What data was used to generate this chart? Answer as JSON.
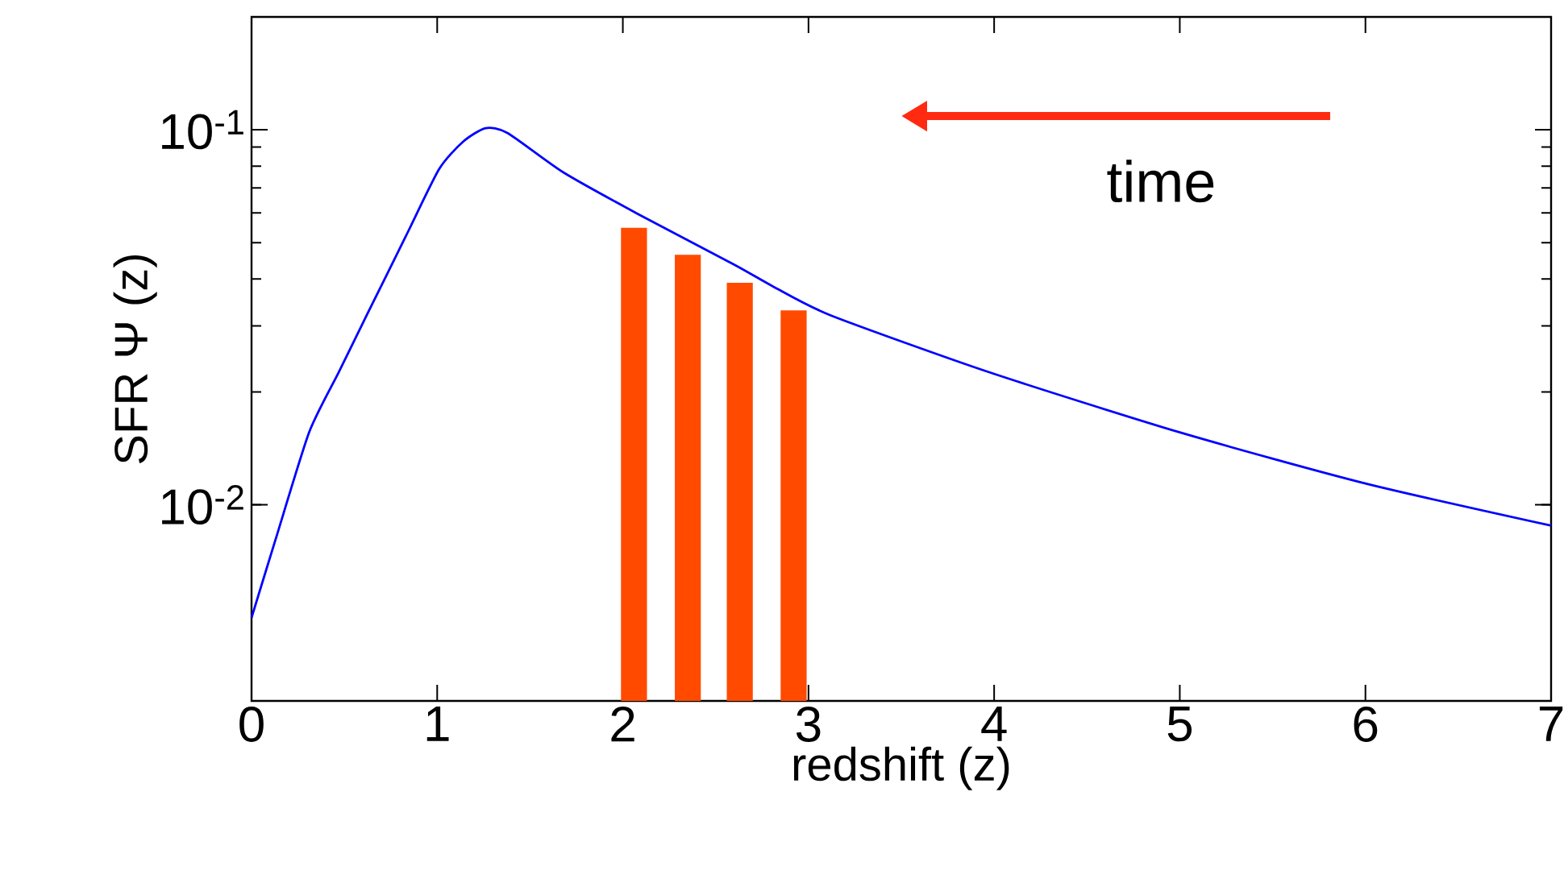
{
  "chart_data": {
    "type": "line",
    "xlabel": "redshift (z)",
    "ylabel": "SFR Ψ (z)",
    "annotations": [
      "time"
    ],
    "log": "y",
    "xlim": [
      0,
      7
    ],
    "ylim": [
      0.003,
      0.2
    ],
    "xticks": [
      0,
      1,
      2,
      3,
      4,
      5,
      6,
      7
    ],
    "yticks": [
      {
        "value": 0.01,
        "label": "10$^{-2}$"
      },
      {
        "value": 0.1,
        "label": "10$^{-1}$"
      }
    ],
    "series": [
      {
        "color": "#0000ff",
        "marker": "none",
        "x": [
          0,
          0.13,
          0.31,
          0.47,
          0.62,
          0.83,
          1.01,
          1.14,
          1.26,
          1.38,
          1.68,
          2.08,
          2.6,
          2.81,
          3.12,
          3.97,
          5.0,
          6.0,
          7.0
        ],
        "values": [
          0.005,
          0.0081,
          0.0156,
          0.0226,
          0.032,
          0.0519,
          0.0785,
          0.093,
          0.101,
          0.098,
          0.077,
          0.0597,
          0.0437,
          0.0382,
          0.032,
          0.0226,
          0.0156,
          0.0114,
          0.0088
        ]
      },
      {
        "type": "bar",
        "color": "#ff4a00",
        "x": [
          2.06,
          2.35,
          2.63,
          2.92
        ],
        "values": [
          0.0548,
          0.0464,
          0.0391,
          0.033
        ]
      }
    ]
  }
}
